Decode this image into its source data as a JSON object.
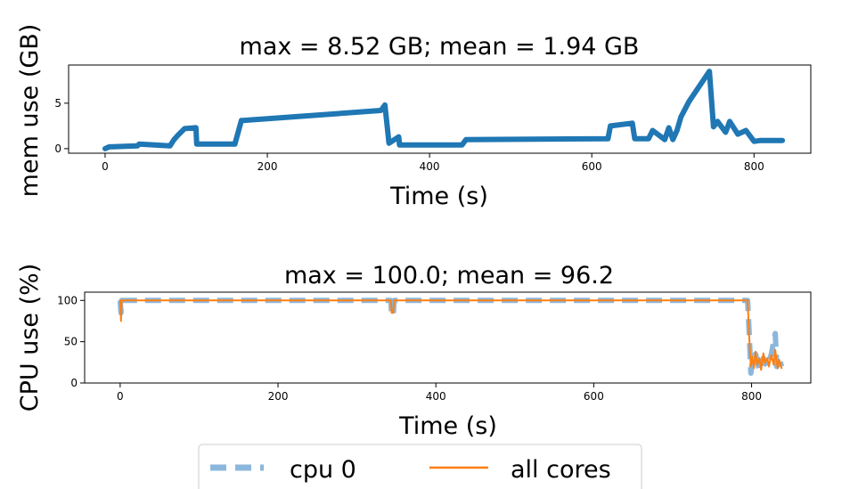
{
  "chart_data": [
    {
      "type": "line",
      "title": "max = 8.52 GB; mean = 1.94 GB",
      "xlabel": "Time (s)",
      "ylabel": "mem use (GB)",
      "xlim": [
        -45,
        870
      ],
      "ylim": [
        -0.5,
        9.2
      ],
      "xticks": [
        0,
        200,
        400,
        600,
        800
      ],
      "yticks": [
        0,
        5
      ],
      "grid": false,
      "series": [
        {
          "color": "#1f77b4",
          "style": "solid",
          "x": [
            0,
            5,
            40,
            42,
            80,
            85,
            90,
            98,
            112,
            113,
            160,
            168,
            170,
            340,
            345,
            350,
            362,
            363,
            440,
            445,
            620,
            623,
            650,
            653,
            670,
            675,
            690,
            695,
            700,
            705,
            710,
            720,
            745,
            750,
            755,
            765,
            770,
            780,
            790,
            800,
            808,
            835
          ],
          "y": [
            0.0,
            0.2,
            0.3,
            0.5,
            0.3,
            1.0,
            1.5,
            2.2,
            2.3,
            0.5,
            0.5,
            3.1,
            3.1,
            4.2,
            4.8,
            0.6,
            1.3,
            0.4,
            0.4,
            1.0,
            1.1,
            2.5,
            2.8,
            1.1,
            1.1,
            2.0,
            1.0,
            2.3,
            1.0,
            2.0,
            3.5,
            5.2,
            8.5,
            2.4,
            3.0,
            1.8,
            3.0,
            1.6,
            2.0,
            0.8,
            0.9,
            0.9
          ]
        }
      ]
    },
    {
      "type": "line",
      "title": "max = 100.0; mean = 96.2",
      "xlabel": "Time (s)",
      "ylabel": "CPU use (%)",
      "xlim": [
        -45,
        875
      ],
      "ylim": [
        0,
        110
      ],
      "xticks": [
        0,
        200,
        400,
        600,
        800
      ],
      "yticks": [
        0,
        50,
        100
      ],
      "grid": false,
      "legend": {
        "position": "bottom-center",
        "entries": [
          "cpu 0",
          "all cores"
        ]
      },
      "series": [
        {
          "name": "cpu 0",
          "color": "#8cb7dc",
          "style": "dashed",
          "x": [
            0,
            1,
            2,
            343,
            344,
            346,
            347,
            795,
            797,
            799,
            801,
            805,
            810,
            815,
            820,
            825,
            830,
            832,
            835,
            838
          ],
          "y": [
            100,
            85,
            100,
            100,
            82,
            82,
            100,
            100,
            60,
            12,
            25,
            35,
            15,
            30,
            20,
            35,
            60,
            20,
            30,
            20
          ]
        },
        {
          "name": "all cores",
          "color": "#ff7f0e",
          "style": "solid",
          "x": [
            0,
            1,
            2,
            343,
            344,
            346,
            347,
            795,
            797,
            799,
            801,
            803,
            805,
            807,
            810,
            812,
            815,
            817,
            820,
            822,
            825,
            828,
            830,
            833,
            835,
            838
          ],
          "y": [
            100,
            75,
            100,
            100,
            85,
            85,
            100,
            100,
            55,
            20,
            32,
            18,
            38,
            22,
            30,
            16,
            36,
            24,
            30,
            20,
            34,
            22,
            40,
            18,
            28,
            18
          ]
        }
      ]
    }
  ]
}
